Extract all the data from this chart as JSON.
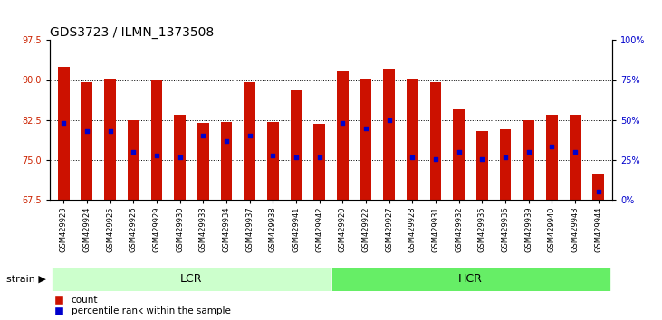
{
  "title": "GDS3723 / ILMN_1373508",
  "samples": [
    "GSM429923",
    "GSM429924",
    "GSM429925",
    "GSM429926",
    "GSM429929",
    "GSM429930",
    "GSM429933",
    "GSM429934",
    "GSM429937",
    "GSM429938",
    "GSM429941",
    "GSM429942",
    "GSM429920",
    "GSM429922",
    "GSM429927",
    "GSM429928",
    "GSM429931",
    "GSM429932",
    "GSM429935",
    "GSM429936",
    "GSM429939",
    "GSM429940",
    "GSM429943",
    "GSM429944"
  ],
  "bar_heights": [
    92.5,
    89.5,
    90.2,
    82.5,
    90.1,
    83.5,
    82.0,
    82.2,
    89.5,
    82.2,
    88.0,
    81.8,
    91.7,
    90.2,
    92.2,
    90.2,
    89.5,
    84.5,
    80.5,
    80.7,
    82.5,
    83.5,
    83.5,
    72.5
  ],
  "percentile_values": [
    82.0,
    80.5,
    80.5,
    76.5,
    75.8,
    75.5,
    79.5,
    78.5,
    79.5,
    75.8,
    75.5,
    75.5,
    82.0,
    81.0,
    82.5,
    75.5,
    75.2,
    76.5,
    75.2,
    75.5,
    76.5,
    77.5,
    76.5,
    69.0
  ],
  "groups": [
    {
      "label": "LCR",
      "start": 0,
      "end": 12,
      "color": "#ccffcc"
    },
    {
      "label": "HCR",
      "start": 12,
      "end": 24,
      "color": "#66ee66"
    }
  ],
  "ylim_left": [
    67.5,
    97.5
  ],
  "yticks_left": [
    67.5,
    75.0,
    82.5,
    90.0,
    97.5
  ],
  "yticks_right_vals": [
    0,
    25,
    50,
    75,
    100
  ],
  "yticks_right_labels": [
    "0%",
    "25%",
    "50%",
    "75%",
    "100%"
  ],
  "bar_color": "#cc1100",
  "dot_color": "#0000cc",
  "background_color": "#ffffff",
  "tick_label_color_left": "#cc2200",
  "tick_label_color_right": "#0000cc",
  "strain_label": "strain",
  "legend_count": "count",
  "legend_percentile": "percentile rank within the sample",
  "title_fontsize": 10,
  "tick_fontsize": 7,
  "xtick_fontsize": 6,
  "group_label_fontsize": 9,
  "bar_width": 0.5
}
